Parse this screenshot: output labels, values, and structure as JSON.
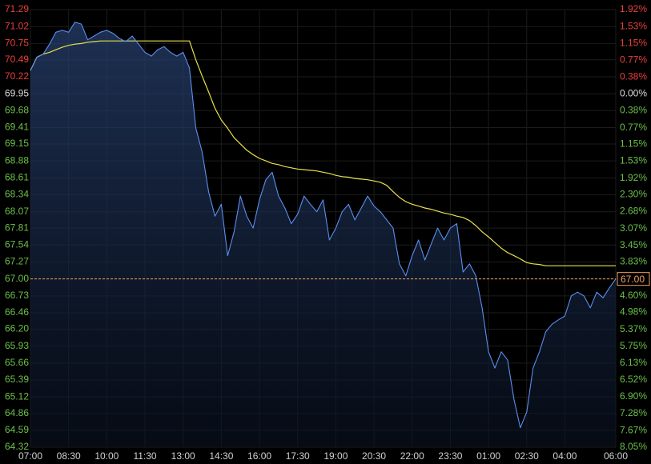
{
  "chart_data": {
    "type": "line",
    "x": [
      0,
      0.25,
      0.5,
      0.75,
      1,
      1.25,
      1.5,
      1.75,
      2,
      2.25,
      2.5,
      2.75,
      3,
      3.25,
      3.5,
      3.75,
      4,
      4.25,
      4.5,
      4.75,
      5,
      5.25,
      5.5,
      5.75,
      6,
      6.25,
      6.5,
      6.75,
      7,
      7.25,
      7.5,
      7.75,
      8,
      8.25,
      8.5,
      8.75,
      9,
      9.25,
      9.5,
      9.75,
      10,
      10.25,
      10.5,
      10.75,
      11,
      11.25,
      11.5,
      11.75,
      12,
      12.25,
      12.5,
      12.75,
      13,
      13.25,
      13.5,
      13.75,
      14,
      14.25,
      14.5,
      14.75,
      15,
      15.25,
      15.5,
      15.75,
      16,
      16.25,
      16.5,
      16.75,
      17,
      17.25,
      17.5,
      17.75,
      18,
      18.25,
      18.5,
      18.75,
      19,
      19.25,
      19.5,
      19.75,
      20,
      20.25,
      20.5,
      20.75,
      21,
      21.25,
      21.5,
      21.75,
      22,
      22.25,
      22.5,
      22.75,
      23
    ],
    "series": [
      {
        "color": "#5b8ff0",
        "values": [
          70.32,
          70.53,
          70.58,
          70.74,
          70.93,
          70.96,
          70.93,
          71.09,
          71.06,
          70.81,
          70.87,
          70.93,
          70.96,
          70.91,
          70.83,
          70.78,
          70.87,
          70.74,
          70.61,
          70.55,
          70.65,
          70.7,
          70.61,
          70.55,
          70.61,
          70.36,
          69.4,
          69.02,
          68.39,
          68.0,
          68.19,
          67.37,
          67.75,
          68.32,
          68.0,
          67.81,
          68.26,
          68.58,
          68.7,
          68.32,
          68.13,
          67.88,
          68.03,
          68.32,
          68.19,
          68.07,
          68.26,
          67.62,
          67.81,
          68.07,
          68.19,
          67.94,
          68.13,
          68.32,
          68.16,
          68.07,
          67.94,
          67.81,
          67.24,
          67.05,
          67.37,
          67.62,
          67.3,
          67.56,
          67.81,
          67.62,
          67.81,
          67.88,
          67.11,
          67.24,
          67.05,
          66.54,
          65.84,
          65.58,
          65.84,
          65.71,
          65.08,
          64.63,
          64.88,
          65.58,
          65.84,
          66.16,
          66.28,
          66.35,
          66.41,
          66.73,
          66.79,
          66.73,
          66.54,
          66.79,
          66.7,
          66.86,
          67.0
        ]
      },
      {
        "color": "#e8e04a",
        "values": [
          70.32,
          70.53,
          70.58,
          70.61,
          70.65,
          70.69,
          70.72,
          70.74,
          70.75,
          70.77,
          70.78,
          70.79,
          70.79,
          70.79,
          70.79,
          70.79,
          70.79,
          70.79,
          70.79,
          70.79,
          70.79,
          70.79,
          70.79,
          70.79,
          70.79,
          70.79,
          70.49,
          70.23,
          69.98,
          69.72,
          69.53,
          69.4,
          69.25,
          69.15,
          69.05,
          68.98,
          68.92,
          68.88,
          68.84,
          68.82,
          68.79,
          68.77,
          68.75,
          68.74,
          68.73,
          68.72,
          68.7,
          68.68,
          68.65,
          68.63,
          68.62,
          68.6,
          68.59,
          68.58,
          68.56,
          68.54,
          68.49,
          68.39,
          68.3,
          68.23,
          68.19,
          68.16,
          68.13,
          68.11,
          68.08,
          68.05,
          68.03,
          68.0,
          67.98,
          67.93,
          67.85,
          67.75,
          67.67,
          67.58,
          67.49,
          67.42,
          67.37,
          67.32,
          67.26,
          67.24,
          67.23,
          67.21,
          67.21,
          67.21,
          67.21,
          67.21,
          67.21,
          67.21,
          67.21,
          67.21,
          67.21,
          67.21,
          67.21
        ]
      }
    ],
    "xlim": [
      0,
      23
    ],
    "xticks": [
      {
        "value": 0,
        "label": "07:00"
      },
      {
        "value": 1.5,
        "label": "08:30"
      },
      {
        "value": 3,
        "label": "10:00"
      },
      {
        "value": 4.5,
        "label": "11:30"
      },
      {
        "value": 6,
        "label": "13:00"
      },
      {
        "value": 7.5,
        "label": "14:30"
      },
      {
        "value": 9,
        "label": "16:00"
      },
      {
        "value": 10.5,
        "label": "17:30"
      },
      {
        "value": 12,
        "label": "19:00"
      },
      {
        "value": 13.5,
        "label": "20:30"
      },
      {
        "value": 15,
        "label": "22:00"
      },
      {
        "value": 16.5,
        "label": "23:30"
      },
      {
        "value": 18,
        "label": "01:00"
      },
      {
        "value": 19.5,
        "label": "02:30"
      },
      {
        "value": 21,
        "label": "04:00"
      },
      {
        "value": 23,
        "label": "06:00"
      }
    ],
    "ylim": [
      64.32,
      71.29
    ],
    "yticks": [
      71.29,
      71.02,
      70.75,
      70.49,
      70.22,
      69.95,
      69.68,
      69.41,
      69.15,
      68.88,
      68.61,
      68.34,
      68.07,
      67.81,
      67.54,
      67.27,
      {
        "value": 67,
        "label": "67.00"
      },
      66.73,
      66.46,
      {
        "value": 66.2,
        "label": "66.20"
      },
      65.93,
      65.66,
      65.39,
      65.12,
      64.86,
      64.59,
      64.32
    ],
    "y2lim": [
      -8.05,
      1.92
    ],
    "y2ticks": [
      {
        "value": 1.92,
        "label": "1.92%"
      },
      {
        "value": 1.53,
        "label": "1.53%"
      },
      {
        "value": 1.15,
        "label": "1.15%"
      },
      {
        "value": 0.77,
        "label": "0.77%"
      },
      {
        "value": 0.38,
        "label": "0.38%"
      },
      {
        "value": 0,
        "label": "0.00%"
      },
      {
        "value": -0.38,
        "label": "0.38%"
      },
      {
        "value": -0.77,
        "label": "0.77%"
      },
      {
        "value": -1.15,
        "label": "1.15%"
      },
      {
        "value": -1.53,
        "label": "1.53%"
      },
      {
        "value": -1.92,
        "label": "1.92%"
      },
      {
        "value": -2.3,
        "label": "2.30%"
      },
      {
        "value": -2.68,
        "label": "2.68%"
      },
      {
        "value": -3.07,
        "label": "3.07%"
      },
      {
        "value": -3.45,
        "label": "3.45%"
      },
      {
        "value": -3.83,
        "label": "3.83%"
      },
      {
        "value": -4.22,
        "label": "4.22%"
      },
      {
        "value": -4.6,
        "label": "4.60%"
      },
      {
        "value": -4.98,
        "label": "4.98%"
      },
      {
        "value": -5.37,
        "label": "5.37%"
      },
      {
        "value": -5.75,
        "label": "5.75%"
      },
      {
        "value": -6.13,
        "label": "6.13%"
      },
      {
        "value": -6.52,
        "label": "6.52%"
      },
      {
        "value": -6.9,
        "label": "6.90%"
      },
      {
        "value": -7.28,
        "label": "7.28%"
      },
      {
        "value": -7.67,
        "label": "7.67%"
      },
      {
        "value": -8.05,
        "label": "8.05%"
      }
    ],
    "tick_colors": {
      "up": "#e8403a",
      "flat": "#dddddd",
      "down": "#6cc04a"
    },
    "last_price": {
      "value": 67,
      "label": "67.00",
      "color": "#f0a060"
    },
    "grid": true
  }
}
